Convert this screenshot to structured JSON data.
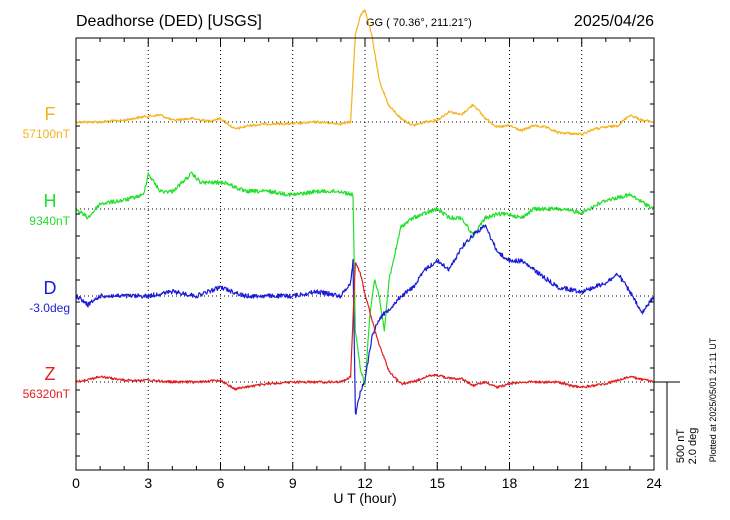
{
  "header": {
    "station": "Deadhorse (DED)  [USGS]",
    "coords": "GG ( 70.36°, 211.21°)",
    "date": "2025/04/26"
  },
  "footer_note": "Plotted at 2025/05/01 21:11 UT",
  "scale_bar": {
    "label_nt": "500 nT",
    "label_deg": "2.0 deg",
    "nt_per_div": 500,
    "deg_per_div": 2.0
  },
  "chart_data": {
    "type": "line",
    "xlabel": "U T (hour)",
    "xlim": [
      0,
      24
    ],
    "xticks": [
      "0",
      "3",
      "6",
      "9",
      "12",
      "15",
      "18",
      "21",
      "24"
    ],
    "grid": "dotted vertical every 3 h, dotted baseline per component",
    "series": [
      {
        "name": "F",
        "baseline_label": "57100nT",
        "unit": "nT",
        "color": "#f5b21b",
        "x": [
          0,
          1,
          2,
          2.8,
          3.5,
          4,
          4.8,
          5.5,
          6,
          6.6,
          7.2,
          8,
          9,
          10,
          11,
          11.4,
          11.6,
          11.8,
          12,
          12.3,
          12.6,
          13,
          13.5,
          14,
          14.5,
          15,
          15.5,
          16,
          16.5,
          17,
          17.5,
          18,
          18.5,
          19,
          19.5,
          20,
          21,
          21.5,
          22,
          22.5,
          23,
          23.5,
          24
        ],
        "y": [
          0,
          0,
          10,
          30,
          40,
          10,
          20,
          5,
          20,
          -40,
          -20,
          -10,
          -10,
          0,
          -10,
          0,
          500,
          600,
          640,
          480,
          230,
          90,
          20,
          -20,
          0,
          10,
          60,
          40,
          100,
          20,
          -30,
          -20,
          -50,
          -20,
          -30,
          -60,
          -70,
          -40,
          -30,
          -20,
          40,
          10,
          0
        ]
      },
      {
        "name": "H",
        "baseline_label": "9340nT",
        "unit": "nT",
        "color": "#22e02a",
        "x": [
          0,
          0.5,
          1,
          2,
          2.8,
          3,
          3.5,
          4,
          4.8,
          5.2,
          5.8,
          6.2,
          7,
          8,
          9,
          10,
          11,
          11.5,
          11.6,
          11.8,
          12,
          12.2,
          12.4,
          12.6,
          12.8,
          13,
          13.5,
          14,
          15,
          15.5,
          16,
          16.5,
          17,
          17.5,
          18,
          18.5,
          19,
          20,
          21,
          22,
          23,
          24
        ],
        "y": [
          0,
          -50,
          30,
          50,
          80,
          200,
          100,
          100,
          200,
          150,
          150,
          150,
          100,
          100,
          80,
          100,
          100,
          80,
          -700,
          -900,
          -1000,
          -600,
          -400,
          -500,
          -700,
          -400,
          -100,
          -50,
          0,
          -50,
          -50,
          -150,
          -50,
          -30,
          -30,
          -50,
          0,
          0,
          -20,
          50,
          80,
          0
        ]
      },
      {
        "name": "D",
        "baseline_label": "-3.0deg",
        "unit": "deg",
        "color": "#1c1cd6",
        "x": [
          0,
          0.5,
          1,
          2,
          3,
          4,
          5,
          6,
          7,
          8,
          9,
          10,
          11,
          11.4,
          11.5,
          11.6,
          11.8,
          12,
          12.3,
          12.6,
          13,
          13.5,
          14,
          14.5,
          15,
          15.5,
          16,
          16.5,
          17,
          17.5,
          18,
          18.5,
          19,
          19.5,
          20,
          21,
          22,
          22.5,
          23,
          23.5,
          24
        ],
        "y": [
          0,
          -0.2,
          0,
          0,
          0,
          0.1,
          0,
          0.2,
          0,
          0,
          0,
          0.1,
          0,
          0.3,
          0.8,
          -2.7,
          -2.2,
          -1.9,
          -0.9,
          -0.5,
          -0.3,
          0,
          0.2,
          0.6,
          0.8,
          0.6,
          1.1,
          1.4,
          1.6,
          1.0,
          0.8,
          0.8,
          0.6,
          0.4,
          0.2,
          0.1,
          0.3,
          0.5,
          0.1,
          -0.4,
          0
        ]
      },
      {
        "name": "Z",
        "baseline_label": "56320nT",
        "unit": "nT",
        "color": "#e02020",
        "x": [
          0,
          1,
          2,
          3,
          4,
          5,
          6,
          6.6,
          7,
          8,
          9,
          10,
          11,
          11.4,
          11.6,
          11.8,
          12,
          12.5,
          13,
          13.5,
          14,
          14.5,
          15,
          15.5,
          16,
          16.5,
          17,
          17.5,
          18,
          18.5,
          19,
          20,
          20.5,
          21,
          21.5,
          22,
          23,
          24
        ],
        "y": [
          0,
          30,
          10,
          10,
          0,
          0,
          10,
          -40,
          -30,
          -10,
          0,
          0,
          0,
          30,
          680,
          620,
          500,
          250,
          60,
          -10,
          0,
          30,
          40,
          20,
          20,
          -20,
          0,
          -30,
          -10,
          0,
          0,
          0,
          -20,
          -30,
          -20,
          -10,
          30,
          0
        ]
      }
    ]
  }
}
